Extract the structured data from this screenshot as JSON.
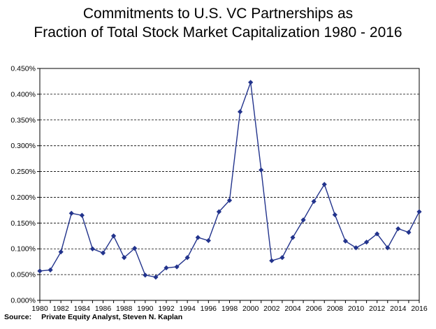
{
  "chart_data": {
    "type": "line",
    "title_lines": [
      "Commitments to U.S. VC Partnerships as",
      "Fraction of Total Stock Market Capitalization 1980 - 2016"
    ],
    "xlabel": "",
    "ylabel": "",
    "x": [
      1980,
      1981,
      1982,
      1983,
      1984,
      1985,
      1986,
      1987,
      1988,
      1989,
      1990,
      1991,
      1992,
      1993,
      1994,
      1995,
      1996,
      1997,
      1998,
      1999,
      2000,
      2001,
      2002,
      2003,
      2004,
      2005,
      2006,
      2007,
      2008,
      2009,
      2010,
      2011,
      2012,
      2013,
      2014,
      2015,
      2016
    ],
    "series": [
      {
        "values": [
          0.057,
          0.059,
          0.094,
          0.169,
          0.165,
          0.1,
          0.092,
          0.125,
          0.083,
          0.101,
          0.049,
          0.045,
          0.063,
          0.065,
          0.083,
          0.122,
          0.116,
          0.172,
          0.194,
          0.366,
          0.423,
          0.253,
          0.077,
          0.083,
          0.122,
          0.156,
          0.192,
          0.225,
          0.166,
          0.115,
          0.102,
          0.113,
          0.129,
          0.102,
          0.139,
          0.132,
          0.172
        ],
        "color": "#22338c"
      }
    ],
    "xlim": [
      1980,
      2016
    ],
    "ylim": [
      0,
      0.45
    ],
    "x_tick_labels": [
      "1980",
      "1982",
      "1984",
      "1986",
      "1988",
      "1990",
      "1992",
      "1994",
      "1996",
      "1998",
      "2000",
      "2002",
      "2004",
      "2006",
      "2008",
      "2010",
      "2012",
      "2014",
      "2016"
    ],
    "y_tick_labels": [
      "0.000%",
      "0.050%",
      "0.100%",
      "0.150%",
      "0.200%",
      "0.250%",
      "0.300%",
      "0.350%",
      "0.400%",
      "0.450%"
    ],
    "y_tick_values": [
      0,
      0.05,
      0.1,
      0.15,
      0.2,
      0.25,
      0.3,
      0.35,
      0.4,
      0.45
    ],
    "grid": "horizontal-dashed",
    "legend": "none"
  },
  "source": {
    "label": "Source:",
    "text": "Private Equity Analyst, Steven N. Kaplan"
  }
}
